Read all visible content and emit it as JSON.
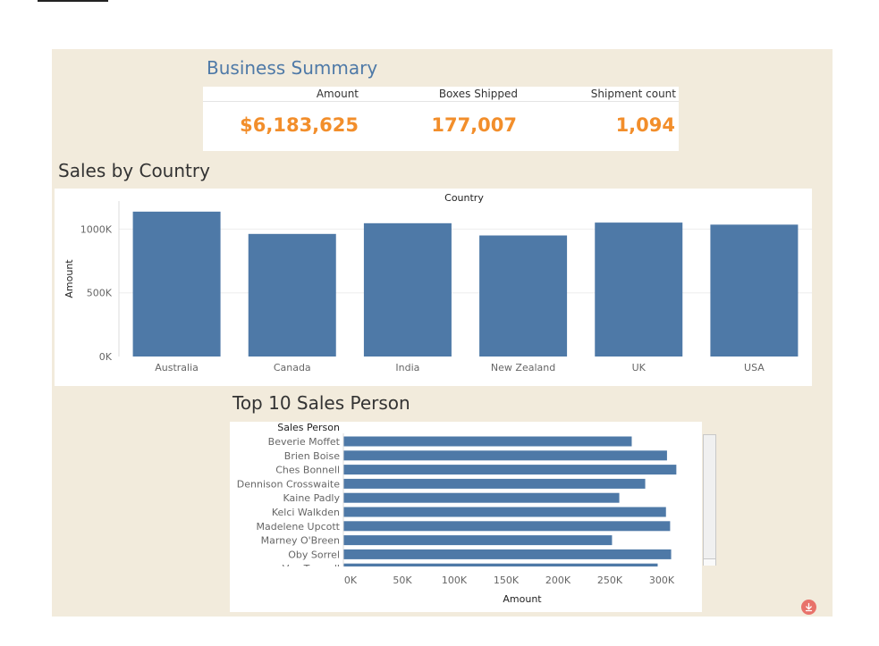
{
  "summary": {
    "title": "Business Summary",
    "kpis": [
      {
        "label": "Amount",
        "value": "$6,183,625"
      },
      {
        "label": "Boxes Shipped",
        "value": "177,007"
      },
      {
        "label": "Shipment count",
        "value": "1,094"
      }
    ]
  },
  "country_section": {
    "title": "Sales by Country"
  },
  "salesperson_section": {
    "title": "Top 10 Sales Person"
  },
  "colors": {
    "bar": "#4e79a7",
    "kpi_value": "#f28e2b",
    "title_accent": "#4e79a7",
    "background": "#f2ebdc"
  },
  "download_icon": "download-icon",
  "chart_data": [
    {
      "type": "bar",
      "title": "Country",
      "categories": [
        "Australia",
        "Canada",
        "India",
        "New Zealand",
        "UK",
        "USA"
      ],
      "values": [
        1137000,
        962000,
        1046000,
        950000,
        1051000,
        1035000
      ],
      "xlabel": "",
      "ylabel": "Amount",
      "ylim": [
        0,
        1150000
      ],
      "yticks": [
        0,
        500000,
        1000000
      ],
      "ytick_labels": [
        "0K",
        "500K",
        "1000K"
      ],
      "grid": true
    },
    {
      "type": "bar",
      "orientation": "horizontal",
      "title": "Sales Person",
      "categories": [
        "Beverie Moffet",
        "Brien Boise",
        "Ches Bonnell",
        "Dennison Crosswaite",
        "Kaine Padly",
        "Kelci Walkden",
        "Madelene Upcott",
        "Marney O'Breen",
        "Oby Sorrel",
        "Van Tuxwell"
      ],
      "values": [
        278000,
        312000,
        321000,
        291000,
        266000,
        311000,
        315000,
        259000,
        316000,
        303000
      ],
      "xlabel": "Amount",
      "ylabel": "",
      "xlim": [
        0,
        330000
      ],
      "xticks": [
        0,
        50000,
        100000,
        150000,
        200000,
        250000,
        300000
      ],
      "xtick_labels": [
        "0K",
        "50K",
        "100K",
        "150K",
        "200K",
        "250K",
        "300K"
      ]
    }
  ]
}
